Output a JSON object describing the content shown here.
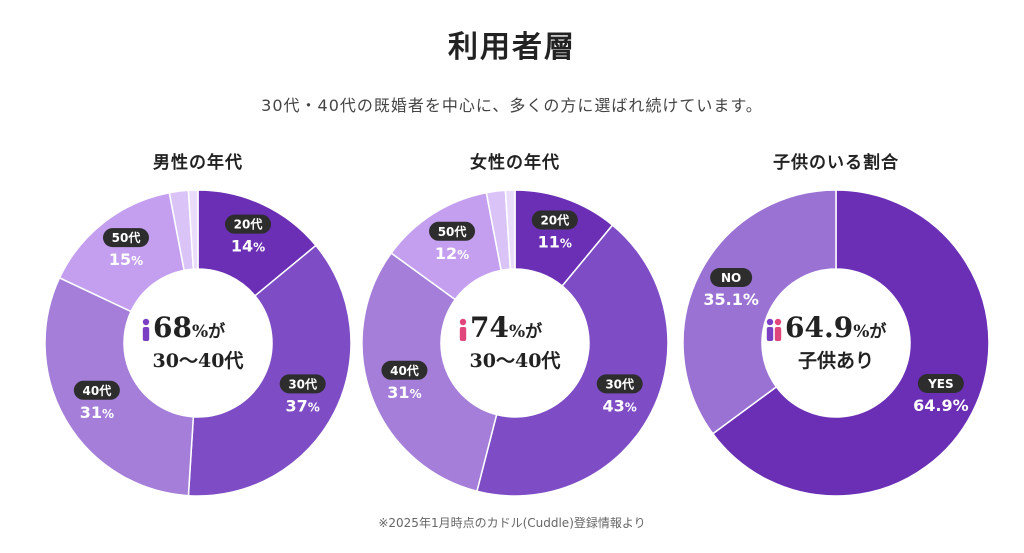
{
  "header": {
    "title": "利用者層",
    "subtitle": "30代・40代の既婚者を中心に、多くの方に選ばれ続けています。"
  },
  "footnote": "※2025年1月時点のカドル(Cuddle)登録情報より",
  "chart_data": [
    {
      "type": "pie",
      "title": "男性の年代",
      "categories": [
        "20代",
        "30代",
        "40代",
        "50代",
        "other-1",
        "other-2"
      ],
      "values": [
        14,
        37,
        31,
        15,
        2,
        1
      ],
      "labels": [
        "20代",
        "30代",
        "40代",
        "50代",
        "",
        ""
      ],
      "value_labels": [
        "14",
        "37",
        "31",
        "15",
        "",
        ""
      ],
      "unit": "%",
      "colors": [
        "#6a2fb5",
        "#7e4dc6",
        "#a47ed8",
        "#c49ff0",
        "#dac4f7",
        "#eadcfb"
      ],
      "center": {
        "icon": "male-person-icon",
        "value": "68",
        "unit": "%が",
        "sub": "30〜40代"
      }
    },
    {
      "type": "pie",
      "title": "女性の年代",
      "categories": [
        "20代",
        "30代",
        "40代",
        "50代",
        "other-1",
        "other-2"
      ],
      "values": [
        11,
        43,
        31,
        12,
        2,
        1
      ],
      "labels": [
        "20代",
        "30代",
        "40代",
        "50代",
        "",
        ""
      ],
      "value_labels": [
        "11",
        "43",
        "31",
        "12",
        "",
        ""
      ],
      "unit": "%",
      "colors": [
        "#6a2fb5",
        "#7e4dc6",
        "#a47ed8",
        "#c49ff0",
        "#dac4f7",
        "#eadcfb"
      ],
      "center": {
        "icon": "female-person-icon",
        "value": "74",
        "unit": "%が",
        "sub": "30〜40代"
      }
    },
    {
      "type": "pie",
      "title": "子供のいる割合",
      "categories": [
        "YES",
        "NO"
      ],
      "values": [
        64.9,
        35.1
      ],
      "labels": [
        "YES",
        "NO"
      ],
      "value_labels": [
        "64.9%",
        "35.1%"
      ],
      "unit": "",
      "colors": [
        "#6a2fb5",
        "#9a72d4"
      ],
      "center": {
        "icon": "couple-icon",
        "value": "64.9",
        "unit": "%が",
        "sub": "子供あり"
      }
    }
  ]
}
